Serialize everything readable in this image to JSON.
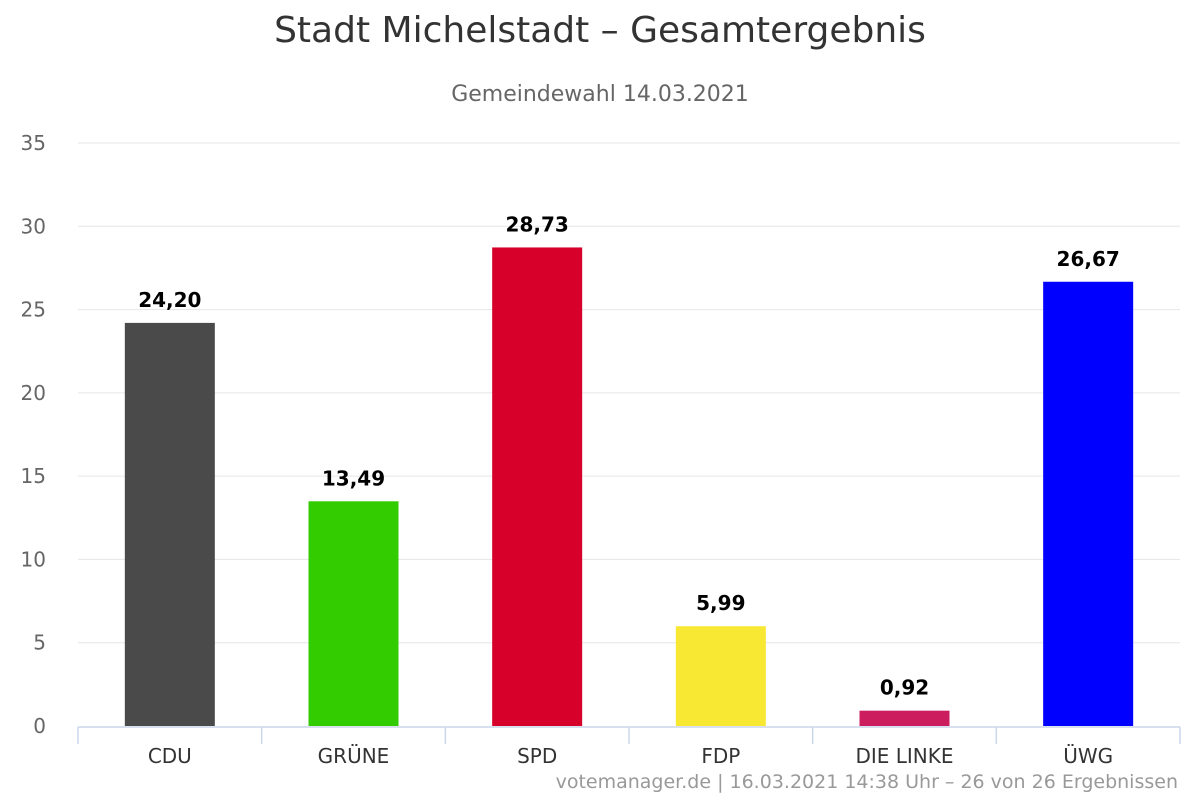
{
  "chart_data": {
    "type": "bar",
    "title": "Stadt Michelstadt – Gesamtergebnis",
    "subtitle": "Gemeindewahl 14.03.2021",
    "categories": [
      "CDU",
      "GRÜNE",
      "SPD",
      "FDP",
      "DIE LINKE",
      "ÜWG"
    ],
    "values": [
      24.2,
      13.49,
      28.73,
      5.99,
      0.92,
      26.67
    ],
    "value_labels": [
      "24,20",
      "13,49",
      "28,73",
      "5,99",
      "0,92",
      "26,67"
    ],
    "colors": [
      "#4a4a4a",
      "#33cc00",
      "#d6002a",
      "#f8e833",
      "#cc1d5e",
      "#0000ff"
    ],
    "ylim": [
      0,
      35
    ],
    "yticks": [
      0,
      5,
      10,
      15,
      20,
      25,
      30,
      35
    ],
    "grid": true,
    "legend": "none",
    "xlabel": "",
    "ylabel": ""
  },
  "credit": "votemanager.de | 16.03.2021 14:38 Uhr – 26 von 26 Ergebnissen"
}
